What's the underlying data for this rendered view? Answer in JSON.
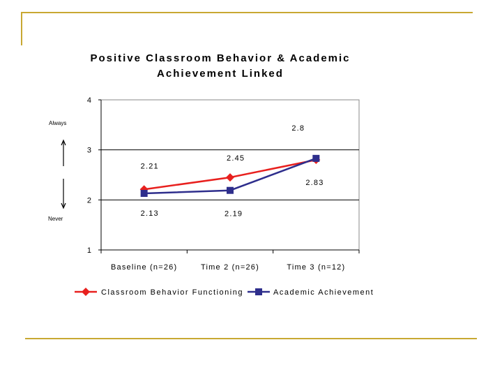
{
  "side_labels": {
    "top": "Always",
    "bottom": "Never"
  },
  "chart_data": {
    "type": "line",
    "title": [
      "Positive Classroom Behavior & Academic",
      "Achievement Linked"
    ],
    "categories": [
      "Baseline (n=26)",
      "Time 2 (n=26)",
      "Time 3 (n=12)"
    ],
    "ylim": [
      1,
      4
    ],
    "yticks": [
      "1",
      "2",
      "3",
      "4"
    ],
    "grid": "horizontal",
    "legend": "bottom",
    "series": [
      {
        "name": "Classroom Behavior Functioning",
        "values": [
          2.21,
          2.45,
          2.8
        ],
        "labels": [
          "2.21",
          "2.45",
          "2.8"
        ],
        "color": "#e8201e",
        "marker": "diamond"
      },
      {
        "name": "Academic Achievement",
        "values": [
          2.13,
          2.19,
          2.83
        ],
        "labels": [
          "2.13",
          "2.19",
          "2.83"
        ],
        "color": "#2e2e8c",
        "marker": "square"
      }
    ]
  }
}
